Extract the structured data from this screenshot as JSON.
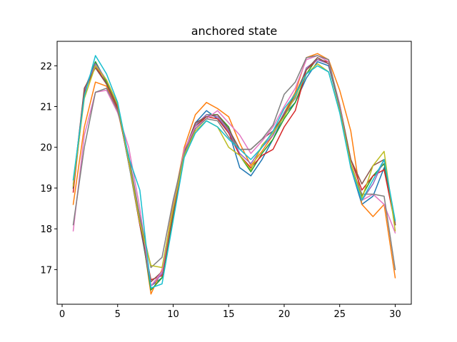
{
  "chart_data": {
    "type": "line",
    "title": "anchored state",
    "xlabel": "",
    "ylabel": "",
    "xlim": [
      -0.45,
      31.45
    ],
    "ylim": [
      16.15,
      22.6
    ],
    "xticks": [
      0,
      5,
      10,
      15,
      20,
      25,
      30
    ],
    "yticks": [
      17,
      18,
      19,
      20,
      21,
      22
    ],
    "x": [
      1,
      2,
      3,
      4,
      5,
      6,
      7,
      8,
      9,
      10,
      11,
      12,
      13,
      14,
      15,
      16,
      17,
      18,
      19,
      20,
      21,
      22,
      23,
      24,
      25,
      26,
      27,
      28,
      29,
      30
    ],
    "grid": false,
    "series": [
      {
        "color": "#1f77b4",
        "values": [
          19.0,
          21.4,
          22.1,
          21.6,
          21.0,
          19.6,
          18.1,
          16.6,
          16.8,
          18.4,
          19.9,
          20.6,
          20.9,
          20.7,
          20.4,
          19.5,
          19.3,
          19.7,
          20.2,
          20.8,
          21.1,
          21.7,
          22.1,
          22.0,
          21.0,
          19.5,
          18.6,
          18.8,
          19.5,
          18.1
        ]
      },
      {
        "color": "#ff7f0e",
        "values": [
          18.6,
          20.5,
          21.6,
          21.5,
          20.9,
          19.7,
          18.3,
          16.4,
          17.0,
          18.6,
          20.0,
          20.8,
          21.1,
          20.95,
          20.75,
          20.1,
          19.55,
          19.9,
          20.3,
          20.85,
          21.35,
          22.2,
          22.3,
          22.15,
          21.4,
          20.4,
          18.6,
          18.3,
          18.6,
          16.8
        ]
      },
      {
        "color": "#2ca02c",
        "values": [
          19.0,
          21.3,
          22.1,
          21.6,
          21.0,
          19.6,
          18.2,
          16.5,
          16.8,
          18.3,
          19.8,
          20.5,
          20.8,
          20.8,
          20.5,
          19.8,
          19.4,
          19.85,
          20.2,
          20.7,
          21.1,
          21.8,
          22.2,
          22.05,
          21.0,
          19.6,
          18.8,
          19.3,
          19.6,
          18.1
        ]
      },
      {
        "color": "#d62728",
        "values": [
          18.9,
          21.35,
          22.0,
          21.55,
          20.95,
          19.65,
          18.1,
          16.75,
          16.85,
          18.4,
          19.8,
          20.5,
          20.75,
          20.7,
          20.35,
          19.8,
          19.5,
          19.8,
          19.95,
          20.5,
          20.9,
          21.9,
          22.15,
          22.1,
          21.0,
          19.7,
          18.95,
          19.3,
          19.45,
          18.1
        ]
      },
      {
        "color": "#9467bd",
        "values": [
          19.1,
          21.4,
          22.05,
          21.65,
          21.05,
          19.6,
          18.2,
          16.6,
          16.9,
          18.5,
          19.9,
          20.55,
          20.8,
          20.75,
          20.4,
          19.85,
          19.6,
          20.0,
          20.3,
          20.85,
          21.2,
          21.95,
          22.15,
          22.05,
          21.05,
          19.6,
          18.7,
          19.1,
          19.7,
          18.15
        ]
      },
      {
        "color": "#8c564b",
        "values": [
          19.05,
          21.45,
          21.95,
          21.55,
          21.0,
          19.65,
          18.15,
          16.7,
          16.95,
          18.45,
          19.9,
          20.6,
          20.75,
          20.8,
          20.45,
          19.95,
          19.95,
          20.2,
          20.4,
          20.8,
          21.3,
          21.9,
          22.2,
          22.05,
          21.05,
          19.7,
          19.1,
          19.55,
          19.7,
          18.1
        ]
      },
      {
        "color": "#e377c2",
        "values": [
          17.95,
          20.3,
          21.35,
          21.4,
          20.85,
          20.0,
          18.5,
          16.6,
          16.95,
          18.55,
          19.95,
          20.5,
          20.7,
          20.9,
          20.6,
          20.3,
          19.85,
          20.15,
          20.5,
          21.0,
          21.45,
          22.15,
          22.25,
          22.1,
          21.05,
          19.5,
          18.7,
          18.85,
          18.6,
          17.9
        ]
      },
      {
        "color": "#7f7f7f",
        "values": [
          18.1,
          20.0,
          21.35,
          21.45,
          20.9,
          19.8,
          18.3,
          17.05,
          17.3,
          18.7,
          19.85,
          20.45,
          20.7,
          20.65,
          20.25,
          19.95,
          19.95,
          20.2,
          20.55,
          21.3,
          21.6,
          22.2,
          22.25,
          22.15,
          21.0,
          19.55,
          18.85,
          18.85,
          18.8,
          17.0
        ]
      },
      {
        "color": "#bcbd22",
        "values": [
          19.05,
          21.2,
          22.0,
          21.65,
          21.05,
          19.65,
          18.15,
          17.1,
          17.05,
          18.5,
          19.8,
          20.4,
          20.65,
          20.5,
          20.0,
          19.8,
          19.45,
          20.05,
          20.35,
          20.75,
          21.25,
          21.8,
          22.05,
          21.85,
          20.9,
          19.6,
          18.75,
          19.55,
          19.9,
          17.95
        ]
      },
      {
        "color": "#17becf",
        "values": [
          19.2,
          21.25,
          22.25,
          21.8,
          21.1,
          19.75,
          18.95,
          16.55,
          16.65,
          18.2,
          19.75,
          20.35,
          20.65,
          20.5,
          20.2,
          19.95,
          19.7,
          20.0,
          20.4,
          20.95,
          21.3,
          21.8,
          22.0,
          21.85,
          20.85,
          19.5,
          18.7,
          19.2,
          19.7,
          18.2
        ]
      }
    ]
  }
}
